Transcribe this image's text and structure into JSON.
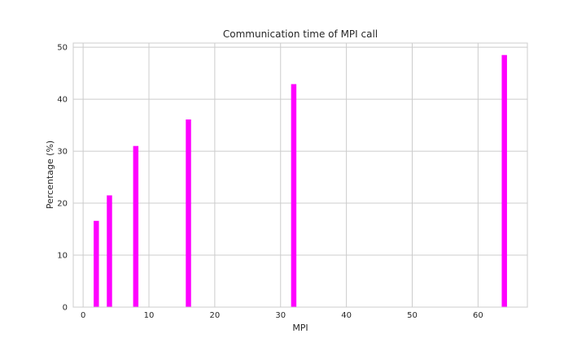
{
  "chart_data": {
    "type": "bar",
    "title": "Communication time of MPI call",
    "xlabel": "MPI",
    "ylabel": "Percentage (%)",
    "x": [
      2,
      4,
      8,
      16,
      32,
      64
    ],
    "values": [
      16.6,
      21.5,
      31.0,
      36.1,
      42.9,
      48.5
    ],
    "xlim": [
      -1.5,
      67.5
    ],
    "ylim": [
      0,
      50.8
    ],
    "xticks": [
      "0",
      "10",
      "20",
      "30",
      "40",
      "50",
      "60"
    ],
    "yticks": [
      "0",
      "10",
      "20",
      "30",
      "40",
      "50"
    ],
    "bar_width": 0.8,
    "grid": true,
    "bar_color": "#ff00ff",
    "grid_color": "#cccccc",
    "spine_color": "#cccccc"
  }
}
